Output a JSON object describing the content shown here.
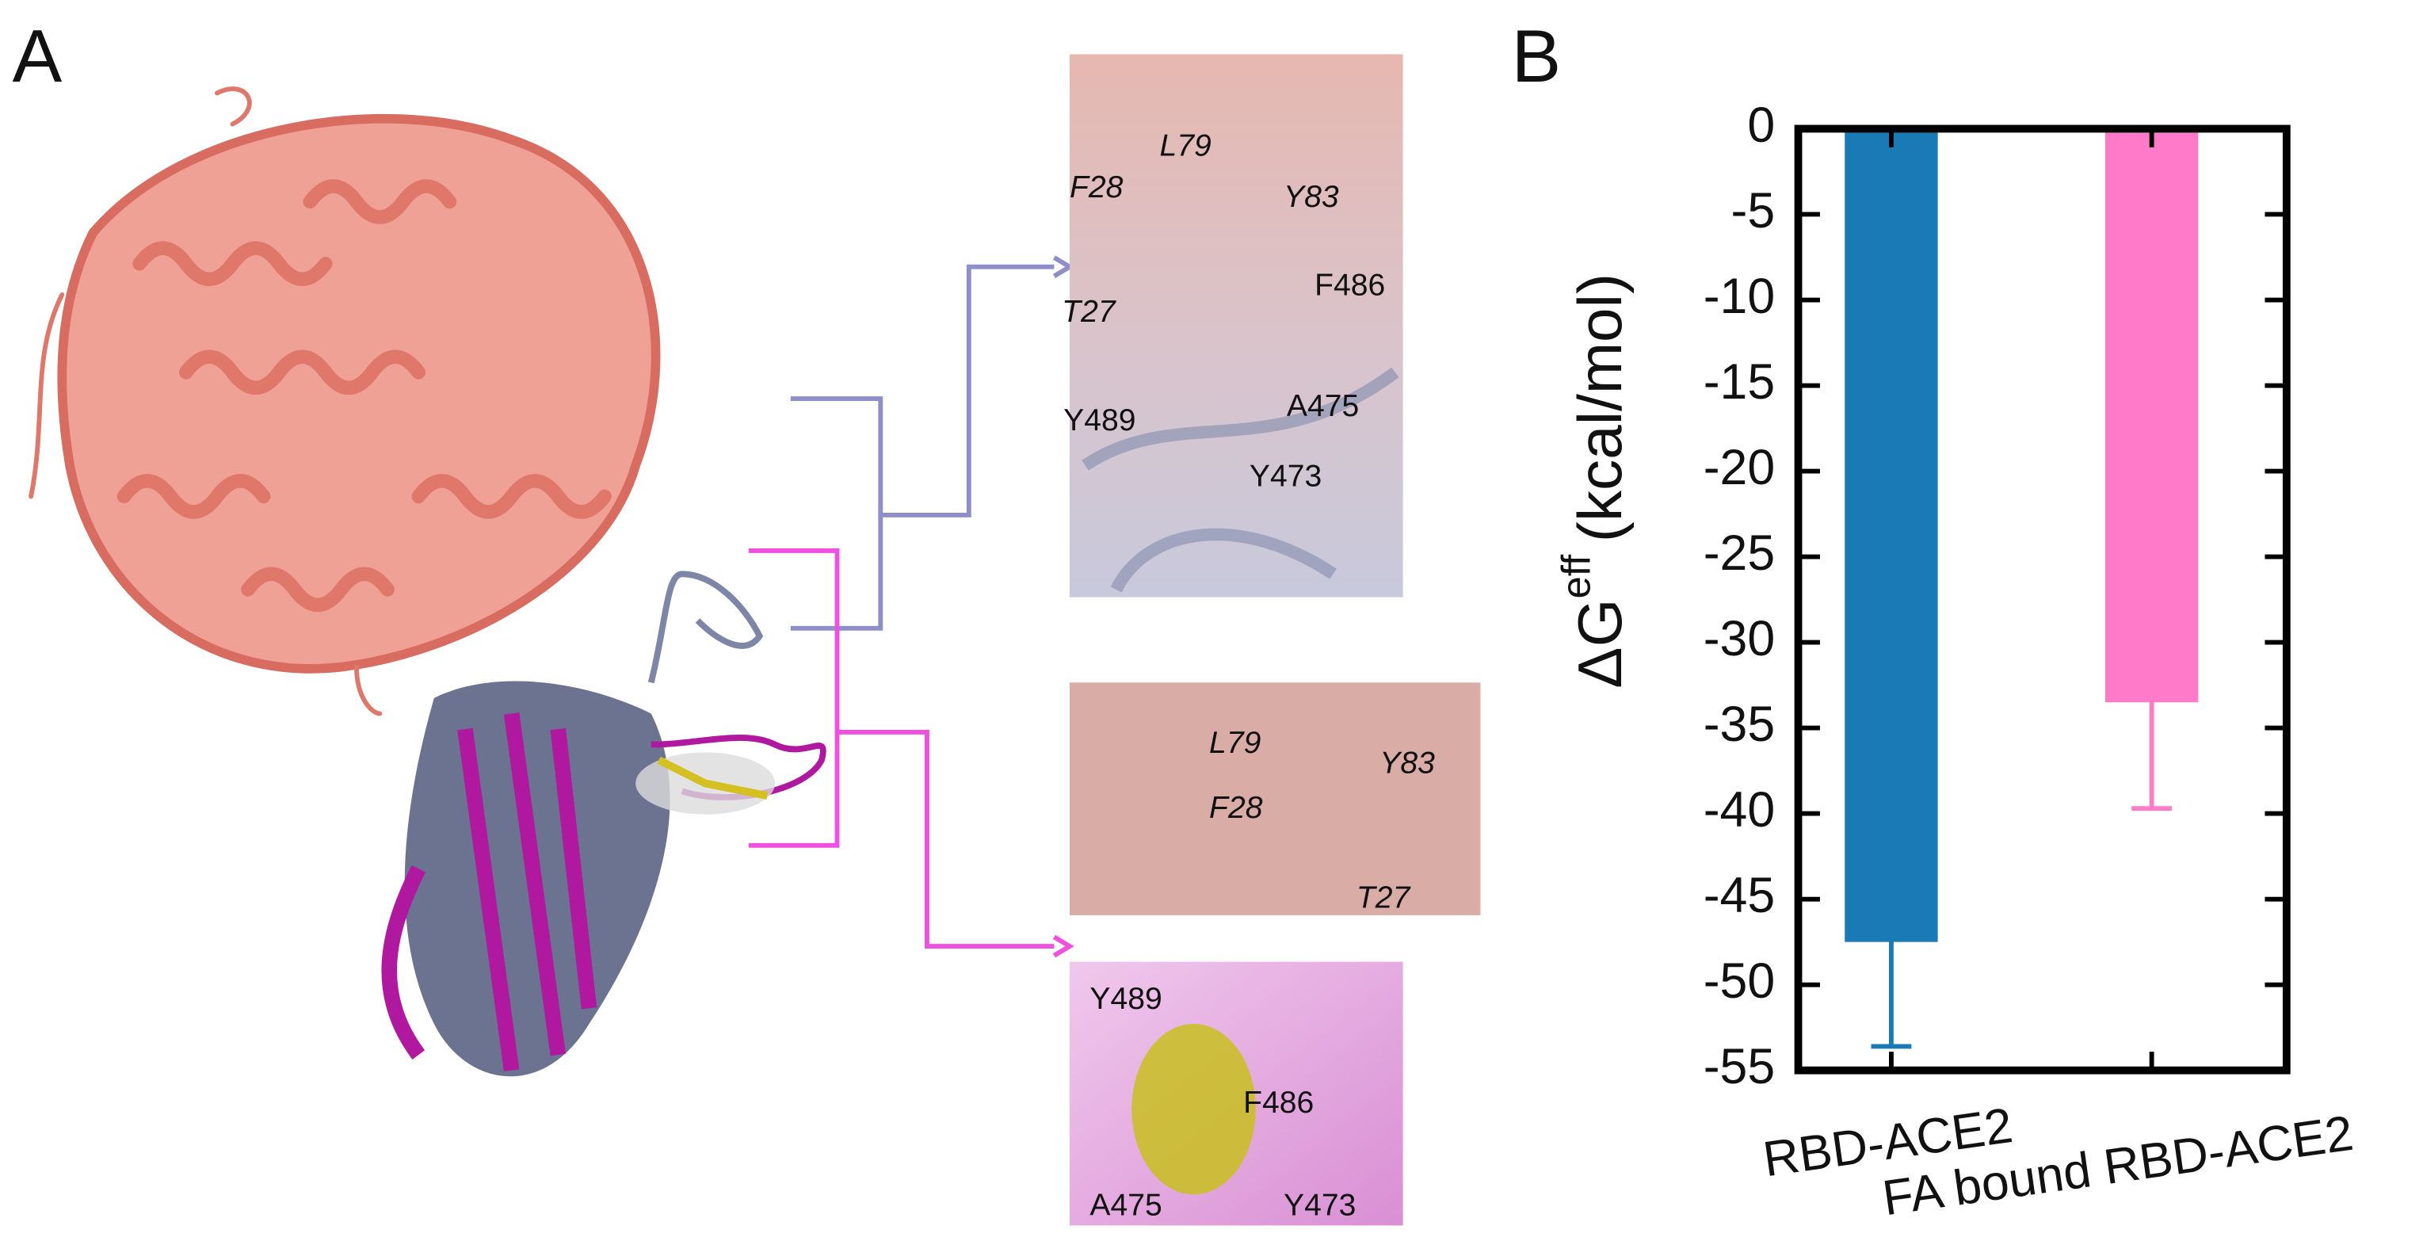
{
  "panels": {
    "a": "A",
    "b": "B"
  },
  "inset_top": {
    "labels": [
      "L79",
      "F28",
      "Y83",
      "F486",
      "T27",
      "A475",
      "Y489",
      "Y473"
    ]
  },
  "inset_middle": {
    "labels": [
      "L79",
      "Y83",
      "F28",
      "T27"
    ]
  },
  "inset_bottom": {
    "labels": [
      "Y489",
      "F486",
      "A475",
      "Y473"
    ]
  },
  "chart_data": {
    "type": "bar",
    "ylabel": {
      "main": "ΔG",
      "sup": "eff",
      "unit": "(kcal/mol)"
    },
    "categories": [
      "RBD-ACE2",
      "FA bound RBD-ACE2"
    ],
    "values": [
      -47.5,
      -33.5
    ],
    "errors": [
      6.1,
      6.2
    ],
    "colors": [
      "#1a7ab5",
      "#ff7ac8"
    ],
    "ylim": [
      -55,
      0
    ],
    "yticks": [
      0,
      -5,
      -10,
      -15,
      -20,
      -25,
      -30,
      -35,
      -40,
      -45,
      -50,
      -55
    ]
  }
}
